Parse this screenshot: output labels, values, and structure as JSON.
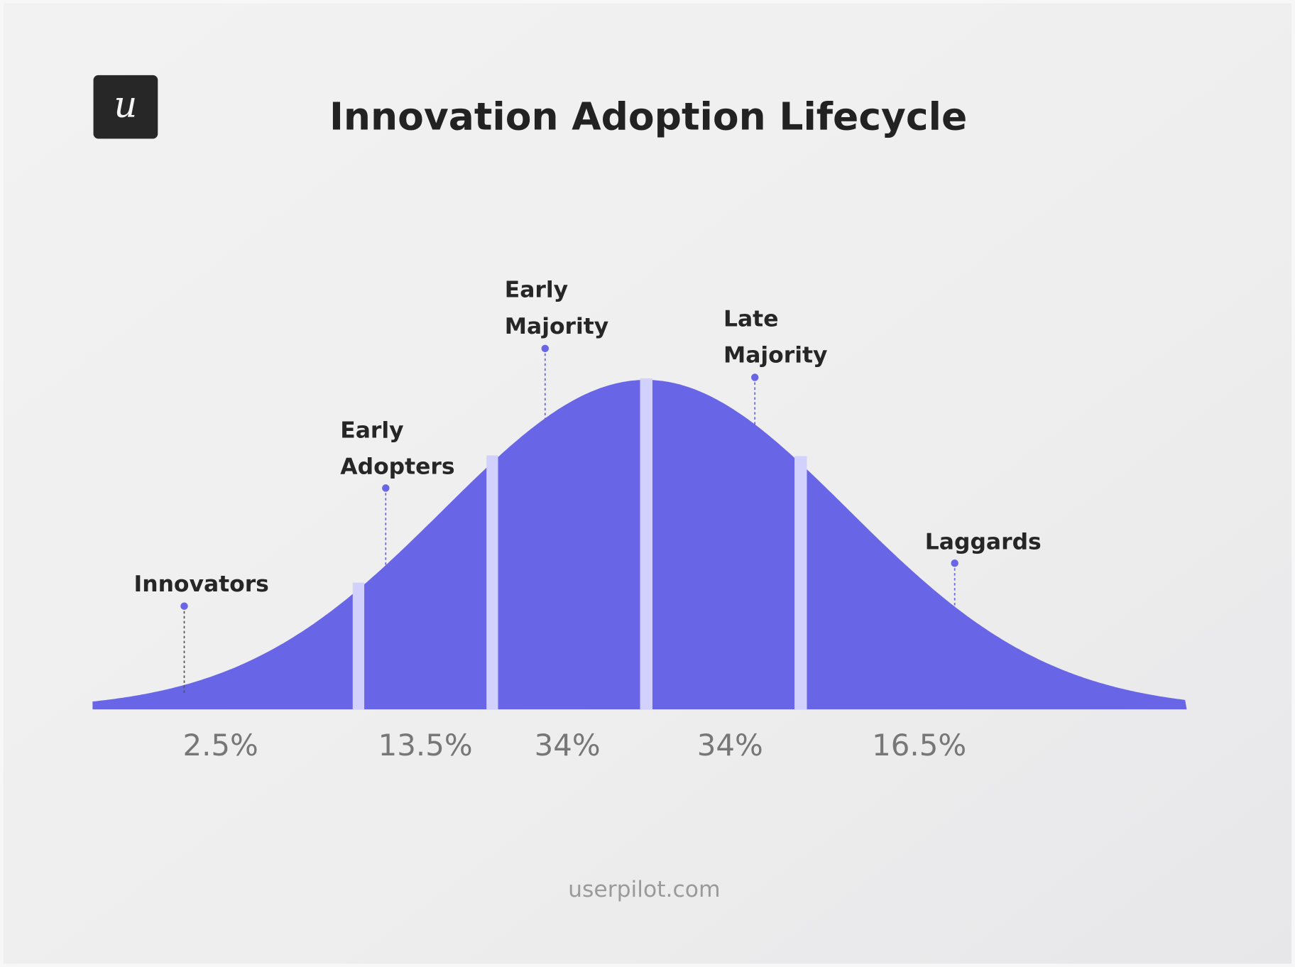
{
  "header": {
    "title": "Innovation Adoption Lifecycle",
    "logo_letter": "u"
  },
  "footer": {
    "site": "userpilot.com"
  },
  "colors": {
    "curve_fill": "#6866e6",
    "divider": "#d2d0fc",
    "marker": "#6866e6",
    "logo_bg": "#272727"
  },
  "chart_data": {
    "type": "area",
    "shape": "normal distribution (bell curve)",
    "title": "Innovation Adoption Lifecycle",
    "segments": [
      {
        "label": "Innovators",
        "label_lines": [
          "Innovators"
        ],
        "percent": 2.5,
        "percent_label": "2.5%"
      },
      {
        "label": "Early Adopters",
        "label_lines": [
          "Early",
          "Adopters"
        ],
        "percent": 13.5,
        "percent_label": "13.5%"
      },
      {
        "label": "Early Majority",
        "label_lines": [
          "Early",
          "Majority"
        ],
        "percent": 34,
        "percent_label": "34%"
      },
      {
        "label": "Late Majority",
        "label_lines": [
          "Late",
          "Majority"
        ],
        "percent": 34,
        "percent_label": "34%"
      },
      {
        "label": "Laggards",
        "label_lines": [
          "Laggards"
        ],
        "percent": 16.5,
        "percent_label": "16.5%"
      }
    ],
    "grid": false,
    "legend": "none"
  }
}
